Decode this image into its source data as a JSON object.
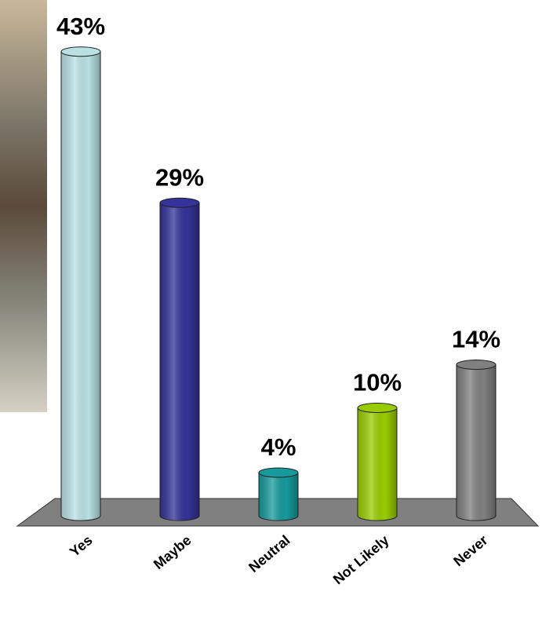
{
  "chart_data": {
    "type": "bar",
    "categories": [
      "Yes",
      "Maybe",
      "Neutral",
      "Not Likely",
      "Never"
    ],
    "values": [
      43,
      29,
      4,
      10,
      14
    ],
    "value_labels": [
      "43%",
      "29%",
      "4%",
      "10%",
      "14%"
    ],
    "colors": [
      "#b9e1e4",
      "#333399",
      "#169a9c",
      "#99cc00",
      "#808080"
    ]
  }
}
